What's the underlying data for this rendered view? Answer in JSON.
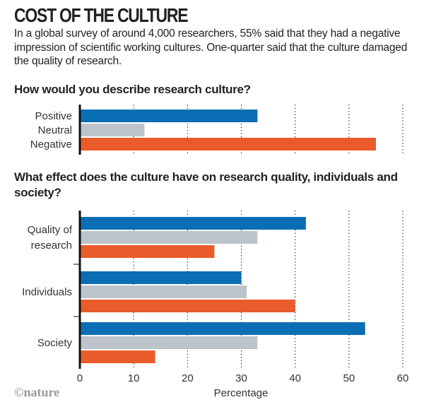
{
  "header": {
    "title": "COST OF THE CULTURE",
    "subtitle": "In a global survey of around 4,000 researchers, 55% said that they had a negative impression of scientific working cultures. One-quarter said that the culture damaged the quality of research."
  },
  "colors": {
    "positive": "#0a6eb4",
    "neutral": "#bcc3ca",
    "negative": "#e95b2a"
  },
  "footer": {
    "logo": "©nature"
  },
  "chart_data": [
    {
      "type": "bar",
      "orientation": "horizontal",
      "title": "How would you describe research culture?",
      "categories": [
        "Positive",
        "Neutral",
        "Negative"
      ],
      "values": [
        33,
        12,
        55
      ],
      "xlim": [
        0,
        60
      ],
      "grid": true
    },
    {
      "type": "bar",
      "orientation": "horizontal",
      "title": "What effect does the culture have on research quality, individuals and society?",
      "categories": [
        [
          "Quality of",
          "research"
        ],
        [
          "Individuals"
        ],
        [
          "Society"
        ]
      ],
      "series": [
        {
          "name": "Positive",
          "values": [
            42,
            30,
            53
          ]
        },
        {
          "name": "Neutral",
          "values": [
            33,
            31,
            33
          ]
        },
        {
          "name": "Negative",
          "values": [
            25,
            40,
            14
          ]
        }
      ],
      "xlabel": "Percentage",
      "xticks": [
        "0",
        "10",
        "20",
        "30",
        "40",
        "50",
        "60"
      ],
      "xlim": [
        0,
        60
      ],
      "grid": true
    }
  ]
}
